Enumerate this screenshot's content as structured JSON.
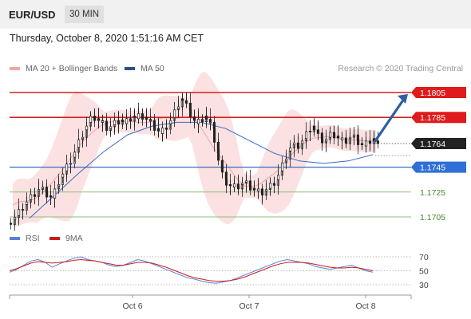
{
  "header": {
    "symbol": "EUR/USD",
    "timeframe": "30 MIN"
  },
  "datetime": "Thursday, October 8, 2020 1:51:16 AM CET",
  "legend": {
    "ma20": "MA 20 + Bollinger Bands",
    "ma50": "MA 50",
    "credit": "Research © 2020 Trading Central"
  },
  "rsi_legend": {
    "rsi": "RSI",
    "ma": "9MA"
  },
  "colors": {
    "red_level": "#d42020",
    "blue_level": "#3a6bbf",
    "green_level": "#8fbf7c",
    "arrow": "#2c5fa3",
    "band": "#f7c9c9",
    "ma20": "#f0a6a6",
    "ma50": "#3a6bbf",
    "price_tag": "#222222",
    "candle": "#222222"
  },
  "chart_data": [
    {
      "type": "candlestick",
      "ylim": [
        1.1695,
        1.1815
      ],
      "x_ticks": [
        "Oct 6",
        "Oct 7",
        "Oct 8"
      ],
      "current_price": "1.1764",
      "levels": [
        {
          "value": "1.1805",
          "kind": "resistance"
        },
        {
          "value": "1.1785",
          "kind": "resistance"
        },
        {
          "value": "1.1745",
          "kind": "pivot"
        },
        {
          "value": "1.1725",
          "kind": "support"
        },
        {
          "value": "1.1705",
          "kind": "support"
        }
      ],
      "close_series": [
        1.1703,
        1.1706,
        1.1711,
        1.1715,
        1.1719,
        1.1722,
        1.1726,
        1.1728,
        1.1725,
        1.1722,
        1.172,
        1.173,
        1.1737,
        1.1742,
        1.1748,
        1.1753,
        1.1761,
        1.1768,
        1.1775,
        1.1781,
        1.1786,
        1.1784,
        1.1781,
        1.1778,
        1.1776,
        1.1779,
        1.1781,
        1.1783,
        1.178,
        1.1783,
        1.1786,
        1.1784,
        1.1787,
        1.1785,
        1.1782,
        1.1778,
        1.1776,
        1.1772,
        1.1776,
        1.178,
        1.1785,
        1.1792,
        1.18,
        1.1797,
        1.1791,
        1.1785,
        1.178,
        1.1782,
        1.1786,
        1.1781,
        1.1776,
        1.1759,
        1.1742,
        1.1735,
        1.1731,
        1.1729,
        1.1729,
        1.1731,
        1.1733,
        1.173,
        1.1728,
        1.1726,
        1.1724,
        1.1726,
        1.1728,
        1.1731,
        1.1735,
        1.1742,
        1.175,
        1.1758,
        1.1763,
        1.1761,
        1.1764,
        1.1768,
        1.1774,
        1.1778,
        1.1772,
        1.1768,
        1.1766,
        1.1769,
        1.1772,
        1.177,
        1.1767,
        1.1765,
        1.1768,
        1.177,
        1.1767,
        1.1764,
        1.1762,
        1.1765,
        1.1768,
        1.1764
      ],
      "ma50_series": [
        1.1704,
        1.1722,
        1.174,
        1.1757,
        1.1771,
        1.1778,
        1.1781,
        1.1781,
        1.1776,
        1.1766,
        1.1756,
        1.175,
        1.1748,
        1.175,
        1.1755
      ],
      "projection": {
        "to": "1.1805"
      }
    },
    {
      "type": "line",
      "title": "RSI",
      "ylim": [
        20,
        80
      ],
      "y_ticks": [
        70,
        50,
        30
      ],
      "rsi_series": [
        48,
        52,
        58,
        64,
        66,
        62,
        55,
        60,
        64,
        68,
        70,
        66,
        64,
        62,
        58,
        56,
        58,
        62,
        66,
        64,
        60,
        56,
        52,
        48,
        44,
        40,
        38,
        35,
        33,
        32,
        34,
        36,
        40,
        44,
        48,
        52,
        56,
        60,
        64,
        66,
        64,
        62,
        60,
        56,
        54,
        52,
        54,
        56,
        58,
        54,
        50,
        48
      ],
      "ma9_series": [
        50,
        53,
        57,
        61,
        63,
        62,
        61,
        62,
        63,
        65,
        66,
        65,
        64,
        62,
        60,
        58,
        58,
        60,
        62,
        62,
        61,
        58,
        55,
        51,
        47,
        43,
        40,
        38,
        36,
        35,
        35,
        36,
        38,
        41,
        45,
        49,
        53,
        57,
        60,
        62,
        62,
        62,
        61,
        59,
        57,
        55,
        54,
        54,
        55,
        54,
        52,
        50
      ]
    }
  ]
}
